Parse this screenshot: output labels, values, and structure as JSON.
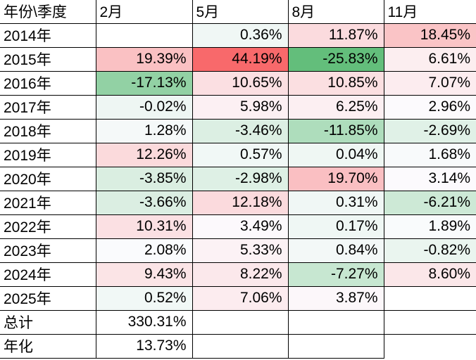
{
  "table": {
    "corner_label": "年份\\季度",
    "columns": [
      "2月",
      "5月",
      "8月",
      "11月"
    ],
    "rows": [
      {
        "label": "2014年",
        "cells": [
          {
            "text": "",
            "bg": "#FFFFFF"
          },
          {
            "text": "0.36%",
            "bg": "#F0F7F5"
          },
          {
            "text": "11.87%",
            "bg": "#FBDBDE"
          },
          {
            "text": "18.45%",
            "bg": "#FAC4C6"
          }
        ]
      },
      {
        "label": "2015年",
        "cells": [
          {
            "text": "19.39%",
            "bg": "#FAC1C3"
          },
          {
            "text": "44.19%",
            "bg": "#F8696B"
          },
          {
            "text": "-25.83%",
            "bg": "#63BE7B"
          },
          {
            "text": "6.61%",
            "bg": "#FCEEF0"
          }
        ]
      },
      {
        "label": "2016年",
        "cells": [
          {
            "text": "-17.13%",
            "bg": "#92D1A4"
          },
          {
            "text": "10.65%",
            "bg": "#FBDFE2"
          },
          {
            "text": "10.85%",
            "bg": "#FBDFE1"
          },
          {
            "text": "7.07%",
            "bg": "#FCECEF"
          }
        ]
      },
      {
        "label": "2017年",
        "cells": [
          {
            "text": "-0.02%",
            "bg": "#EEF6F3"
          },
          {
            "text": "5.98%",
            "bg": "#FCF0F3"
          },
          {
            "text": "6.25%",
            "bg": "#FCEFF2"
          },
          {
            "text": "2.96%",
            "bg": "#FCFAFD"
          }
        ]
      },
      {
        "label": "2018年",
        "cells": [
          {
            "text": "1.28%",
            "bg": "#F5F9F9"
          },
          {
            "text": "-3.46%",
            "bg": "#DCEFE3"
          },
          {
            "text": "-11.85%",
            "bg": "#AEDDBC"
          },
          {
            "text": "-2.69%",
            "bg": "#E0F1E7"
          }
        ]
      },
      {
        "label": "2019年",
        "cells": [
          {
            "text": "12.26%",
            "bg": "#FBDADC"
          },
          {
            "text": "0.57%",
            "bg": "#F1F8F6"
          },
          {
            "text": "0.04%",
            "bg": "#EFF7F3"
          },
          {
            "text": "1.68%",
            "bg": "#F8FAFB"
          }
        ]
      },
      {
        "label": "2020年",
        "cells": [
          {
            "text": "-3.85%",
            "bg": "#DAEEE1"
          },
          {
            "text": "-2.98%",
            "bg": "#DEF0E5"
          },
          {
            "text": "19.70%",
            "bg": "#FABFC2"
          },
          {
            "text": "3.14%",
            "bg": "#FCFAFD"
          }
        ]
      },
      {
        "label": "2021年",
        "cells": [
          {
            "text": "-3.66%",
            "bg": "#DBEEE2"
          },
          {
            "text": "12.18%",
            "bg": "#FBDADD"
          },
          {
            "text": "0.31%",
            "bg": "#F0F7F5"
          },
          {
            "text": "-6.21%",
            "bg": "#CDE9D6"
          }
        ]
      },
      {
        "label": "2022年",
        "cells": [
          {
            "text": "10.31%",
            "bg": "#FBE0E3"
          },
          {
            "text": "3.49%",
            "bg": "#FCF9FC"
          },
          {
            "text": "0.17%",
            "bg": "#EFF7F4"
          },
          {
            "text": "1.89%",
            "bg": "#F9FBFC"
          }
        ]
      },
      {
        "label": "2023年",
        "cells": [
          {
            "text": "2.08%",
            "bg": "#FAFBFD"
          },
          {
            "text": "5.33%",
            "bg": "#FCF2F5"
          },
          {
            "text": "0.84%",
            "bg": "#F3F8F7"
          },
          {
            "text": "-0.82%",
            "bg": "#EAF5EF"
          }
        ]
      },
      {
        "label": "2024年",
        "cells": [
          {
            "text": "9.43%",
            "bg": "#FBE4E6"
          },
          {
            "text": "8.22%",
            "bg": "#FBE8EB"
          },
          {
            "text": "-7.27%",
            "bg": "#C7E7D1"
          },
          {
            "text": "8.60%",
            "bg": "#FBE7E9"
          }
        ]
      },
      {
        "label": "2025年",
        "cells": [
          {
            "text": "0.52%",
            "bg": "#F1F8F6"
          },
          {
            "text": "7.06%",
            "bg": "#FCECEF"
          },
          {
            "text": "3.87%",
            "bg": "#FCF7FA"
          },
          {
            "text": "",
            "bg": "#FFFFFF"
          }
        ]
      },
      {
        "label": "总计",
        "cells": [
          {
            "text": "330.31%",
            "bg": "#FFFFFF"
          },
          {
            "text": "",
            "bg": "#FFFFFF"
          },
          {
            "text": "",
            "bg": "#FFFFFF"
          },
          {
            "text": "",
            "bg": "#FFFFFF"
          }
        ]
      },
      {
        "label": "年化",
        "cells": [
          {
            "text": "13.73%",
            "bg": "#FFFFFF"
          },
          {
            "text": "",
            "bg": "#FFFFFF"
          },
          {
            "text": "",
            "bg": "#FFFFFF"
          },
          {
            "text": "",
            "bg": "#FFFFFF"
          }
        ]
      }
    ]
  },
  "heatmap_scale": {
    "max_value": "44.19%",
    "max_color": "#F8696B",
    "mid_color": "#FCFCFF",
    "min_value": "-25.83%",
    "min_color": "#63BE7B",
    "grid_color": "#000000",
    "text_color": "#000000"
  }
}
